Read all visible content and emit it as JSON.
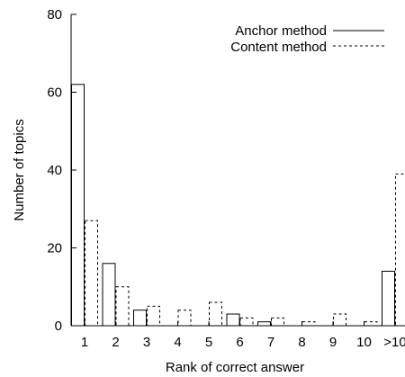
{
  "chart_data": {
    "type": "bar",
    "categories": [
      "1",
      "2",
      "3",
      "4",
      "5",
      "6",
      "7",
      "8",
      "9",
      "10",
      ">10"
    ],
    "series": [
      {
        "name": "Anchor method",
        "values": [
          62,
          16,
          4,
          0,
          0,
          3,
          1,
          0,
          0,
          0,
          14
        ],
        "style": "solid"
      },
      {
        "name": "Content method",
        "values": [
          27,
          10,
          5,
          4,
          6,
          2,
          2,
          1,
          3,
          1,
          39
        ],
        "style": "dashed"
      }
    ],
    "xlabel": "Rank of correct answer",
    "ylabel": "Number of topics",
    "ylim": [
      0,
      80
    ],
    "yticks": [
      0,
      20,
      40,
      60,
      80
    ],
    "grid": false,
    "legend_position": "top-right",
    "colors": {
      "line": "#000000",
      "background": "#ffffff"
    }
  }
}
